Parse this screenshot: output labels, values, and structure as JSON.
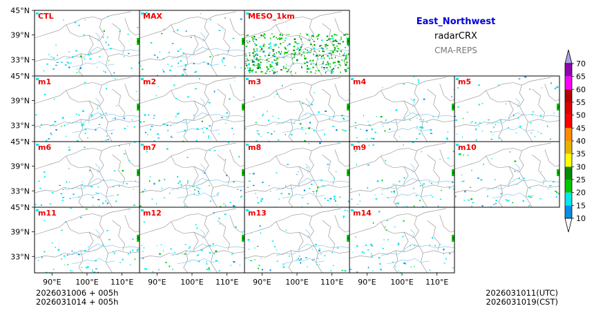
{
  "title": {
    "region": "East_Northwest",
    "variable": "radarCRX",
    "source": "CMA-REPS"
  },
  "colors": {
    "region_title": "#0000dd",
    "panel_label": "#ee0000",
    "source_text": "#777777"
  },
  "panels": [
    {
      "label": "CTL"
    },
    {
      "label": "MAX"
    },
    {
      "label": "MESO_1km"
    },
    {
      "label": "m1"
    },
    {
      "label": "m2"
    },
    {
      "label": "m3"
    },
    {
      "label": "m4"
    },
    {
      "label": "m5"
    },
    {
      "label": "m6"
    },
    {
      "label": "m7"
    },
    {
      "label": "m8"
    },
    {
      "label": "m9"
    },
    {
      "label": "m10"
    },
    {
      "label": "m11"
    },
    {
      "label": "m12"
    },
    {
      "label": "m13"
    },
    {
      "label": "m14"
    }
  ],
  "axes": {
    "lat_ticks": [
      "45°N",
      "39°N",
      "33°N"
    ],
    "lon_ticks": [
      "90°E",
      "100°E",
      "110°E"
    ]
  },
  "colorbar": {
    "levels": [
      "10",
      "15",
      "20",
      "25",
      "30",
      "35",
      "40",
      "45",
      "50",
      "55",
      "60",
      "65",
      "70"
    ],
    "colors": [
      "#0a8ce6",
      "#00e8ea",
      "#00c800",
      "#008c00",
      "#ffff00",
      "#e6b400",
      "#ff8c00",
      "#ff0000",
      "#dc0000",
      "#b40000",
      "#ff00ff",
      "#9400b4",
      "#ae9ee6"
    ]
  },
  "footer": {
    "init1": "2026031006  +  005h",
    "init2": "2026031014  +  005h",
    "valid_utc": "2026031011(UTC)",
    "valid_cst": "2026031019(CST)"
  }
}
